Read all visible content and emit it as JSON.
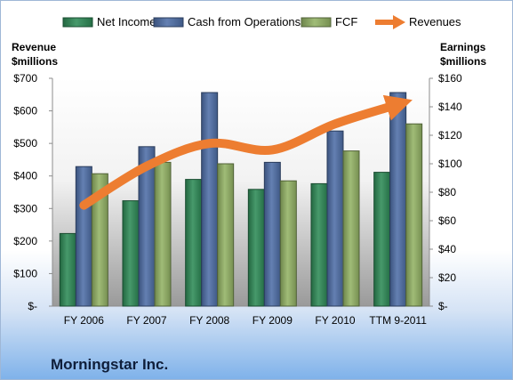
{
  "chart_data": {
    "type": "bar",
    "title": "Morningstar Inc.",
    "categories": [
      "FY 2006",
      "FY 2007",
      "FY 2008",
      "FY 2009",
      "FY 2010",
      "TTM 9-2011"
    ],
    "left_axis": {
      "label_lines": [
        "Revenue",
        "$millions"
      ],
      "range": [
        0,
        700
      ],
      "ticks": [
        {
          "value": 0,
          "label": "$-"
        },
        {
          "value": 100,
          "label": "$100"
        },
        {
          "value": 200,
          "label": "$200"
        },
        {
          "value": 300,
          "label": "$300"
        },
        {
          "value": 400,
          "label": "$400"
        },
        {
          "value": 500,
          "label": "$500"
        },
        {
          "value": 600,
          "label": "$600"
        },
        {
          "value": 700,
          "label": "$700"
        }
      ]
    },
    "right_axis": {
      "label_lines": [
        "Earnings",
        "$millions"
      ],
      "range": [
        0,
        160
      ],
      "ticks": [
        {
          "value": 0,
          "label": "$-"
        },
        {
          "value": 20,
          "label": "$20"
        },
        {
          "value": 40,
          "label": "$40"
        },
        {
          "value": 60,
          "label": "$60"
        },
        {
          "value": 80,
          "label": "$80"
        },
        {
          "value": 100,
          "label": "$100"
        },
        {
          "value": 120,
          "label": "$120"
        },
        {
          "value": 140,
          "label": "$140"
        },
        {
          "value": 160,
          "label": "$160"
        }
      ]
    },
    "series": [
      {
        "name": "Net Income",
        "type": "bar",
        "axis": "right",
        "color": "#2e8b57",
        "values": [
          51,
          74,
          89,
          82,
          86,
          94
        ]
      },
      {
        "name": "Cash from Operations",
        "type": "bar",
        "axis": "right",
        "color": "#4f6fa8",
        "values": [
          98,
          112,
          150,
          101,
          123,
          150
        ]
      },
      {
        "name": "FCF",
        "type": "bar",
        "axis": "right",
        "color": "#93b365",
        "values": [
          93,
          101,
          100,
          88,
          109,
          128
        ]
      },
      {
        "name": "Revenues",
        "type": "line",
        "axis": "left",
        "color": "#ed7d31",
        "values": [
          310,
          430,
          500,
          480,
          560,
          620
        ]
      }
    ],
    "grid": false,
    "legend_position": "top"
  }
}
